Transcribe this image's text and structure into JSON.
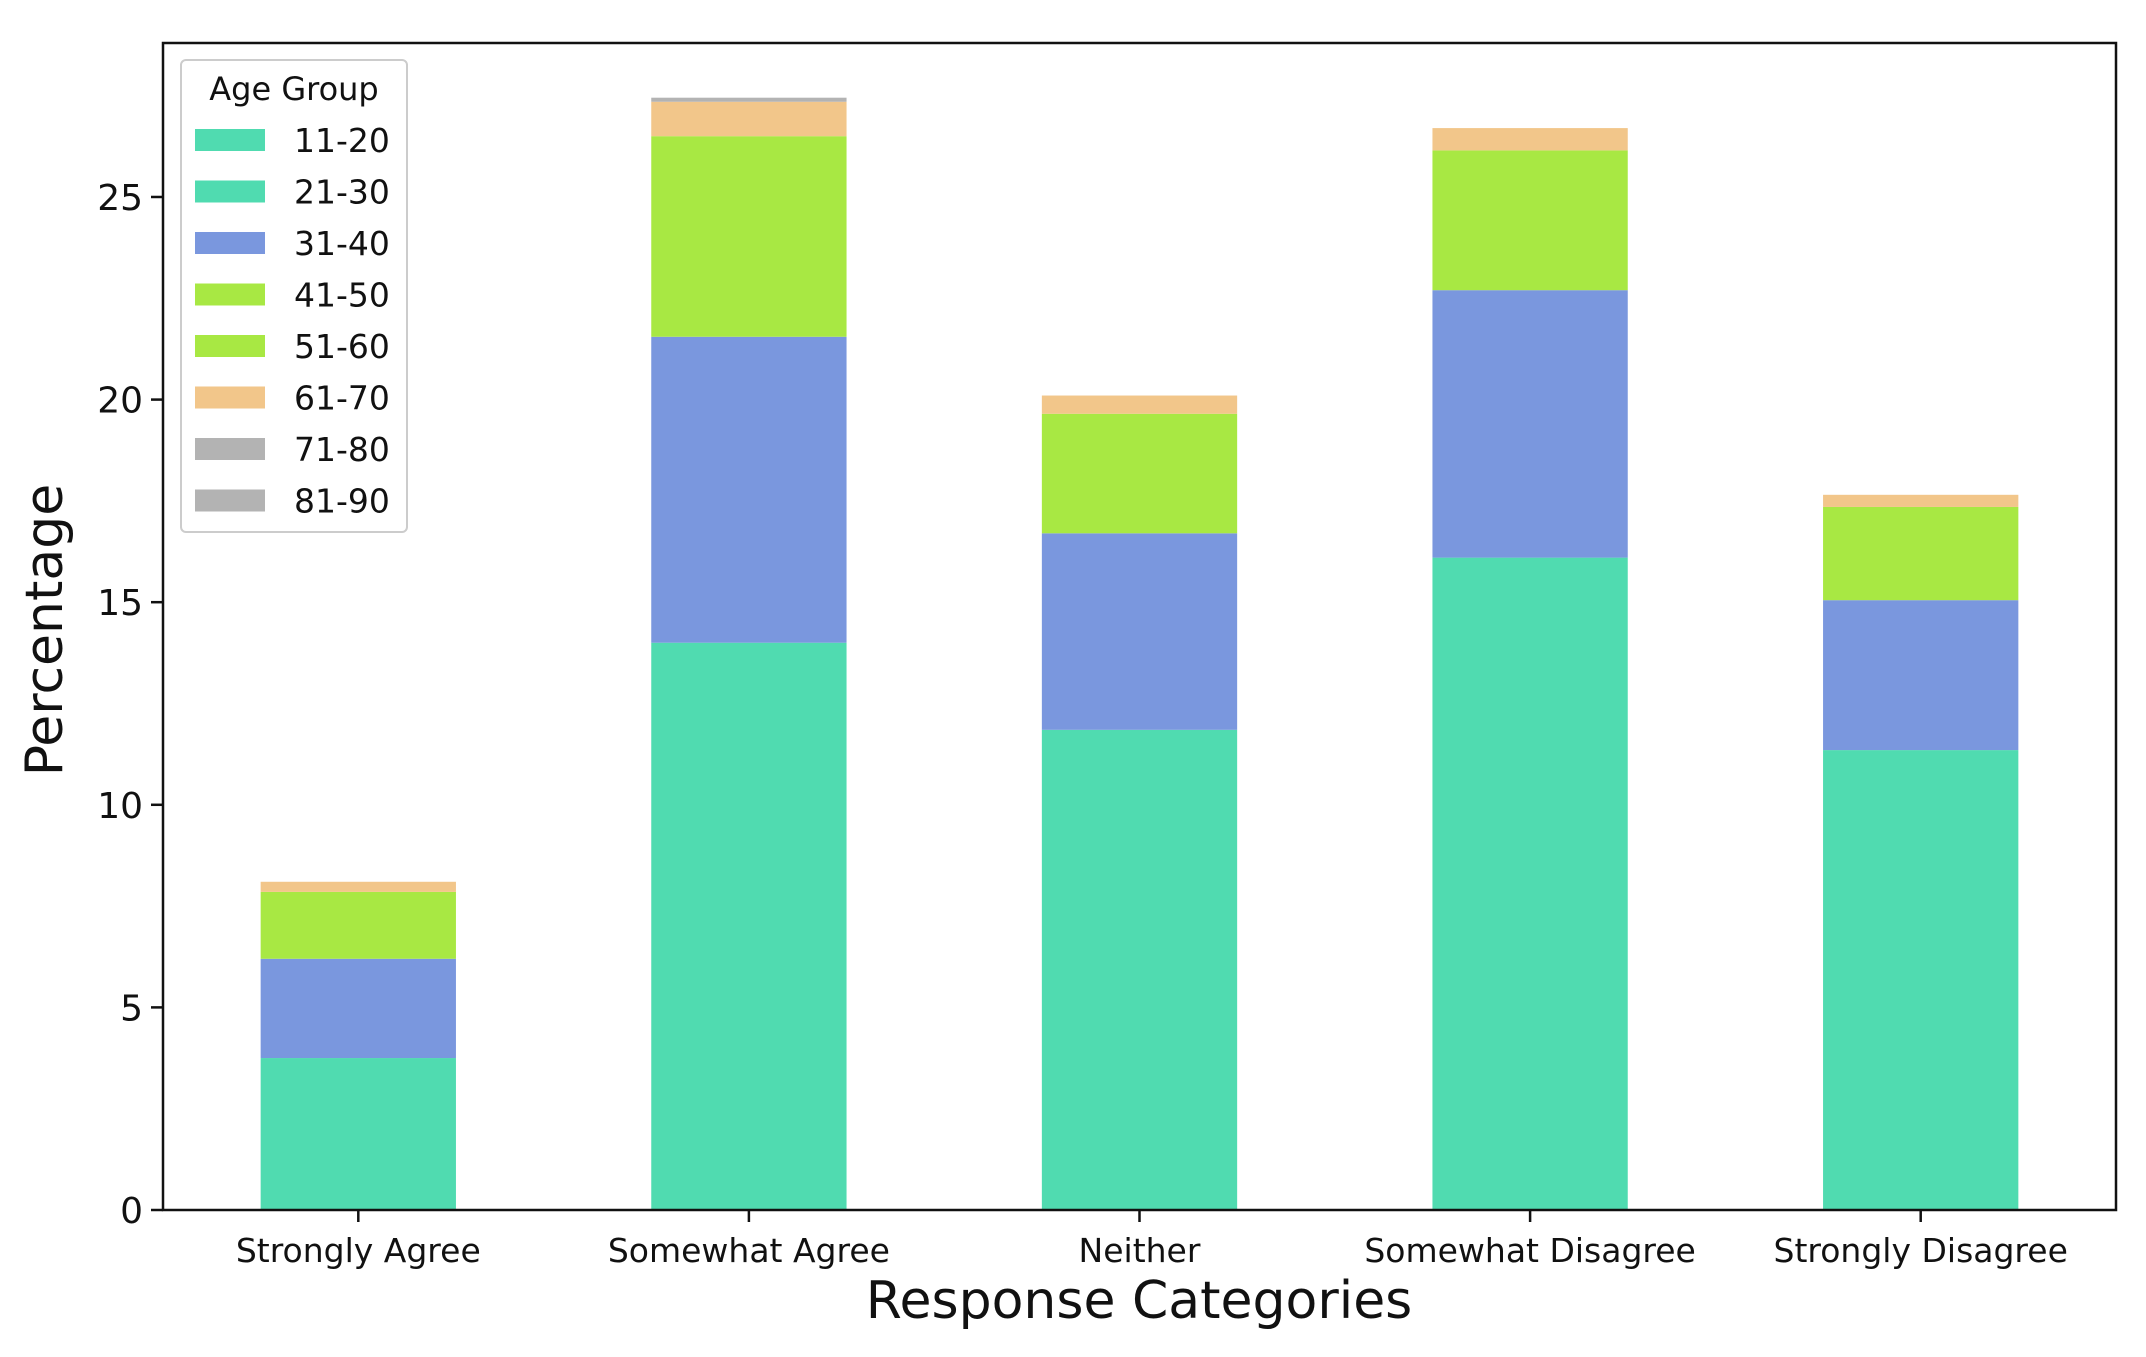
{
  "chart_data": {
    "type": "bar",
    "stacked": true,
    "title": "",
    "xlabel": "Response Categories",
    "ylabel": "Percentage",
    "ylim": [
      0,
      28.8
    ],
    "yticks": [
      0,
      5,
      10,
      15,
      20,
      25
    ],
    "grid": false,
    "legend": {
      "title": "Age Group",
      "placement": "top-left"
    },
    "categories": [
      "Strongly Agree",
      "Somewhat Agree",
      "Neither",
      "Somewhat Disagree",
      "Strongly Disagree"
    ],
    "series": [
      {
        "name": "11-20",
        "color": "#50dbb0",
        "values": [
          0,
          0,
          0,
          0,
          0
        ]
      },
      {
        "name": "21-30",
        "color": "#50dbb0",
        "values": [
          3.75,
          14.0,
          11.85,
          16.1,
          11.35
        ]
      },
      {
        "name": "31-40",
        "color": "#7a97de",
        "values": [
          2.45,
          7.55,
          4.85,
          6.6,
          3.7
        ]
      },
      {
        "name": "41-50",
        "color": "#a8e843",
        "values": [
          0,
          0,
          0,
          0,
          0
        ]
      },
      {
        "name": "51-60",
        "color": "#a8e843",
        "values": [
          1.65,
          4.95,
          2.95,
          3.45,
          2.3
        ]
      },
      {
        "name": "61-70",
        "color": "#f2c68a",
        "values": [
          0.25,
          0.85,
          0.45,
          0.55,
          0.3
        ]
      },
      {
        "name": "71-80",
        "color": "#b3b3b3",
        "values": [
          0,
          0.1,
          0,
          0,
          0
        ]
      },
      {
        "name": "81-90",
        "color": "#b3b3b3",
        "values": [
          0,
          0,
          0,
          0,
          0
        ]
      }
    ]
  }
}
